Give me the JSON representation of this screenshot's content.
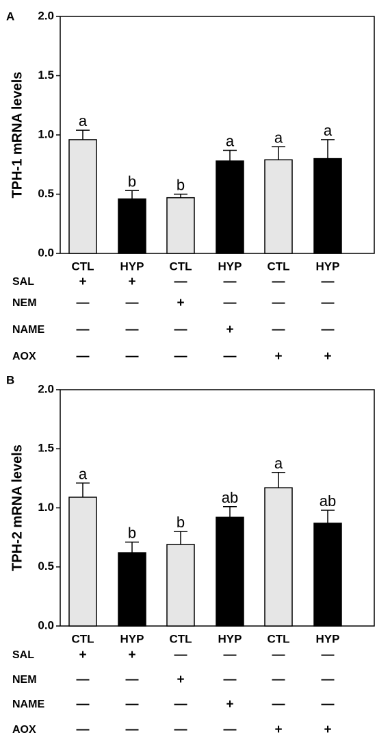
{
  "chart_data": [
    {
      "panel": "A",
      "type": "bar",
      "ylabel": "TPH-1 mRNA levels",
      "ylim": [
        0,
        2.0
      ],
      "yticks": [
        "0.0",
        "0.5",
        "1.0",
        "1.5",
        "2.0"
      ],
      "categories": [
        "CTL",
        "HYP",
        "CTL",
        "HYP",
        "CTL",
        "HYP"
      ],
      "values": [
        0.96,
        0.46,
        0.47,
        0.78,
        0.79,
        0.8
      ],
      "errors": [
        0.08,
        0.07,
        0.03,
        0.09,
        0.11,
        0.16
      ],
      "letters": [
        "a",
        "b",
        "b",
        "a",
        "a",
        "a"
      ],
      "bar_colors": [
        "#e6e6e6",
        "#000000",
        "#e6e6e6",
        "#000000",
        "#e6e6e6",
        "#000000"
      ],
      "treatments": [
        {
          "label": "SAL",
          "symbols": [
            "+",
            "+",
            "—",
            "—",
            "—",
            "—"
          ]
        },
        {
          "label": "NEM",
          "symbols": [
            "—",
            "—",
            "+",
            "—",
            "—",
            "—"
          ]
        },
        {
          "label": "NAME",
          "symbols": [
            "—",
            "—",
            "—",
            "+",
            "—",
            "—"
          ]
        },
        {
          "label": "AOX",
          "symbols": [
            "—",
            "—",
            "—",
            "—",
            "+",
            "+"
          ]
        }
      ]
    },
    {
      "panel": "B",
      "type": "bar",
      "ylabel": "TPH-2 mRNA levels",
      "ylim": [
        0,
        2.0
      ],
      "yticks": [
        "0.0",
        "0.5",
        "1.0",
        "1.5",
        "2.0"
      ],
      "categories": [
        "CTL",
        "HYP",
        "CTL",
        "HYP",
        "CTL",
        "HYP"
      ],
      "values": [
        1.09,
        0.62,
        0.69,
        0.92,
        1.17,
        0.87
      ],
      "errors": [
        0.12,
        0.09,
        0.11,
        0.09,
        0.13,
        0.11
      ],
      "letters": [
        "a",
        "b",
        "b",
        "ab",
        "a",
        "ab"
      ],
      "bar_colors": [
        "#e6e6e6",
        "#000000",
        "#e6e6e6",
        "#000000",
        "#e6e6e6",
        "#000000"
      ],
      "treatments": [
        {
          "label": "SAL",
          "symbols": [
            "+",
            "+",
            "—",
            "—",
            "—",
            "—"
          ]
        },
        {
          "label": "NEM",
          "symbols": [
            "—",
            "—",
            "+",
            "—",
            "—",
            "—"
          ]
        },
        {
          "label": "NAME",
          "symbols": [
            "—",
            "—",
            "—",
            "+",
            "—",
            "—"
          ]
        },
        {
          "label": "AOX",
          "symbols": [
            "—",
            "—",
            "—",
            "—",
            "+",
            "+"
          ]
        }
      ]
    }
  ]
}
